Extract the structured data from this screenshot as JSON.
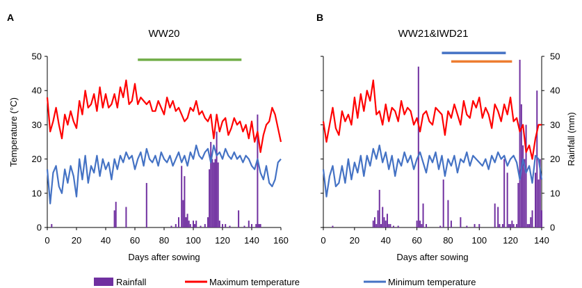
{
  "legend": {
    "rainfall": "Rainfall",
    "max_temp": "Maximum temperature",
    "min_temp": "Minimum temperature"
  },
  "colors": {
    "rainfall": "#7030a0",
    "max_temp": "#ff0000",
    "min_temp": "#4472c4",
    "green_bar": "#70ad47",
    "blue_bar": "#4472c4",
    "orange_bar": "#ed7d31"
  },
  "chart_data": [
    {
      "panel_label": "A",
      "type": "line",
      "title": "WW20",
      "xlabel": "Days after sowing",
      "ylabel": "Temperature (°C)",
      "xlim": [
        0,
        160
      ],
      "ylim": [
        0,
        50
      ],
      "xticks": [
        "0",
        "20",
        "40",
        "60",
        "80",
        "100",
        "120",
        "140",
        "160"
      ],
      "yticks": [
        "0",
        "10",
        "20",
        "30",
        "40",
        "50"
      ],
      "period_bars": [
        {
          "color": "green",
          "from": 62,
          "to": 133,
          "value": 49
        }
      ],
      "series": [
        {
          "name": "Maximum temperature",
          "x": [
            0,
            2,
            4,
            6,
            8,
            10,
            12,
            14,
            16,
            18,
            20,
            22,
            24,
            26,
            28,
            30,
            32,
            34,
            36,
            38,
            40,
            42,
            44,
            46,
            48,
            50,
            52,
            54,
            56,
            58,
            60,
            62,
            64,
            66,
            68,
            70,
            72,
            74,
            76,
            78,
            80,
            82,
            84,
            86,
            88,
            90,
            92,
            94,
            96,
            98,
            100,
            102,
            104,
            106,
            108,
            110,
            112,
            114,
            116,
            118,
            120,
            122,
            124,
            126,
            128,
            130,
            132,
            134,
            136,
            138,
            140,
            142,
            144,
            146,
            148,
            150,
            152,
            154,
            156,
            158,
            160
          ],
          "y": [
            38,
            28,
            31,
            35,
            30,
            26,
            33,
            30,
            34,
            31,
            29,
            37,
            33,
            40,
            35,
            36,
            39,
            34,
            41,
            35,
            39,
            35,
            36,
            39,
            35,
            41,
            38,
            43,
            36,
            37,
            42,
            36,
            38,
            37,
            36,
            37,
            34,
            34,
            37,
            35,
            33,
            38,
            35,
            37,
            34,
            35,
            33,
            31,
            32,
            35,
            34,
            37,
            33,
            34,
            32,
            31,
            33,
            26,
            33,
            28,
            31,
            32,
            27,
            29,
            32,
            30,
            31,
            28,
            30,
            26,
            31,
            25,
            28,
            22,
            27,
            30,
            31,
            35,
            33,
            29,
            25
          ]
        },
        {
          "name": "Minimum temperature",
          "x": [
            0,
            2,
            4,
            6,
            8,
            10,
            12,
            14,
            16,
            18,
            20,
            22,
            24,
            26,
            28,
            30,
            32,
            34,
            36,
            38,
            40,
            42,
            44,
            46,
            48,
            50,
            52,
            54,
            56,
            58,
            60,
            62,
            64,
            66,
            68,
            70,
            72,
            74,
            76,
            78,
            80,
            82,
            84,
            86,
            88,
            90,
            92,
            94,
            96,
            98,
            100,
            102,
            104,
            106,
            108,
            110,
            112,
            114,
            116,
            118,
            120,
            122,
            124,
            126,
            128,
            130,
            132,
            134,
            136,
            138,
            140,
            142,
            144,
            146,
            148,
            150,
            152,
            154,
            156,
            158,
            160
          ],
          "y": [
            17,
            7,
            16,
            18,
            12,
            10,
            17,
            13,
            18,
            15,
            9,
            20,
            14,
            21,
            13,
            18,
            16,
            21,
            15,
            20,
            17,
            19,
            14,
            20,
            17,
            21,
            19,
            22,
            20,
            21,
            17,
            20,
            22,
            18,
            23,
            20,
            19,
            21,
            18,
            22,
            20,
            19,
            21,
            18,
            20,
            22,
            19,
            21,
            18,
            22,
            20,
            24,
            21,
            20,
            22,
            23,
            19,
            24,
            21,
            22,
            20,
            23,
            21,
            20,
            22,
            20,
            21,
            19,
            21,
            20,
            18,
            17,
            20,
            16,
            14,
            18,
            13,
            12,
            14,
            19,
            20
          ]
        },
        {
          "name": "Rainfall",
          "axis": "right",
          "type": "bar",
          "x": [
            3,
            46,
            47,
            54,
            68,
            85,
            88,
            90,
            92,
            93,
            94,
            95,
            96,
            97,
            98,
            100,
            101,
            102,
            105,
            108,
            110,
            111,
            112,
            113,
            114,
            115,
            116,
            117,
            118,
            120,
            122,
            125,
            131,
            135,
            138,
            140,
            143,
            144,
            145,
            146
          ],
          "y": [
            1,
            5,
            7.5,
            6,
            13,
            0.5,
            1,
            3,
            18,
            8,
            15,
            3,
            4,
            2,
            1,
            2,
            1,
            2,
            0.5,
            1,
            3,
            17,
            25,
            20,
            19,
            20,
            28,
            19,
            2,
            1,
            1,
            0.5,
            5,
            0.5,
            2,
            1,
            1,
            33,
            1,
            1
          ]
        }
      ]
    },
    {
      "panel_label": "B",
      "type": "line",
      "title": "WW21&IWD21",
      "xlabel": "Days after sowing",
      "ylabel": "Rainfall (mm)",
      "xlim": [
        0,
        140
      ],
      "ylim": [
        0,
        50
      ],
      "xticks": [
        "0",
        "20",
        "40",
        "60",
        "80",
        "100",
        "120",
        "140"
      ],
      "yticks": [
        "0",
        "10",
        "20",
        "30",
        "40",
        "50"
      ],
      "period_bars": [
        {
          "color": "blue",
          "from": 76,
          "to": 117,
          "value": 51
        },
        {
          "color": "orange",
          "from": 82,
          "to": 121,
          "value": 48.5
        }
      ],
      "series": [
        {
          "name": "Maximum temperature",
          "x": [
            0,
            2,
            4,
            6,
            8,
            10,
            12,
            14,
            16,
            18,
            20,
            22,
            24,
            26,
            28,
            30,
            32,
            34,
            36,
            38,
            40,
            42,
            44,
            46,
            48,
            50,
            52,
            54,
            56,
            58,
            60,
            62,
            64,
            66,
            68,
            70,
            72,
            74,
            76,
            78,
            80,
            82,
            84,
            86,
            88,
            90,
            92,
            94,
            96,
            98,
            100,
            102,
            104,
            106,
            108,
            110,
            112,
            114,
            116,
            118,
            120,
            122,
            124,
            126,
            128,
            130,
            132,
            134,
            136,
            138,
            140
          ],
          "y": [
            31,
            25,
            30,
            35,
            29,
            27,
            34,
            31,
            33,
            30,
            38,
            32,
            39,
            34,
            40,
            37,
            43,
            33,
            34,
            30,
            36,
            31,
            35,
            34,
            31,
            37,
            33,
            35,
            34,
            30,
            32,
            28,
            33,
            34,
            31,
            30,
            35,
            34,
            33,
            27,
            34,
            32,
            36,
            33,
            30,
            37,
            33,
            32,
            37,
            35,
            38,
            32,
            35,
            33,
            29,
            36,
            34,
            31,
            36,
            33,
            38,
            31,
            32,
            28,
            30,
            22,
            24,
            20,
            26,
            30,
            30
          ]
        },
        {
          "name": "Minimum temperature",
          "x": [
            0,
            2,
            4,
            6,
            8,
            10,
            12,
            14,
            16,
            18,
            20,
            22,
            24,
            26,
            28,
            30,
            32,
            34,
            36,
            38,
            40,
            42,
            44,
            46,
            48,
            50,
            52,
            54,
            56,
            58,
            60,
            62,
            64,
            66,
            68,
            70,
            72,
            74,
            76,
            78,
            80,
            82,
            84,
            86,
            88,
            90,
            92,
            94,
            96,
            98,
            100,
            102,
            104,
            106,
            108,
            110,
            112,
            114,
            116,
            118,
            120,
            122,
            124,
            126,
            128,
            130,
            132,
            134,
            136,
            138,
            140
          ],
          "y": [
            17,
            9,
            15,
            18,
            12,
            13,
            18,
            13,
            20,
            14,
            19,
            16,
            21,
            15,
            21,
            18,
            23,
            20,
            24,
            19,
            22,
            17,
            21,
            15,
            20,
            18,
            22,
            19,
            21,
            17,
            20,
            22,
            19,
            16,
            21,
            19,
            22,
            17,
            21,
            15,
            20,
            18,
            21,
            16,
            20,
            19,
            22,
            18,
            21,
            20,
            19,
            18,
            20,
            17,
            21,
            19,
            22,
            20,
            21,
            18,
            20,
            21,
            19,
            14,
            20,
            16,
            18,
            13,
            21,
            20,
            14
          ]
        },
        {
          "name": "Rainfall",
          "axis": "right",
          "type": "bar",
          "x": [
            6,
            32,
            33,
            34,
            35,
            36,
            37,
            38,
            39,
            40,
            41,
            42,
            43,
            45,
            48,
            60,
            61,
            62,
            63,
            64,
            66,
            75,
            77,
            80,
            82,
            88,
            92,
            97,
            100,
            110,
            112,
            113,
            115,
            116,
            118,
            119,
            120,
            121,
            122,
            124,
            125,
            126,
            127,
            128,
            129,
            130,
            131,
            132,
            133,
            134,
            136,
            137,
            138,
            139,
            140
          ],
          "y": [
            0.5,
            2,
            3,
            1,
            5,
            11,
            1,
            6,
            3,
            2,
            4,
            1,
            1,
            0.5,
            0.5,
            2,
            47,
            2,
            1,
            7,
            1,
            0.5,
            14,
            8,
            2,
            3,
            0.5,
            1,
            1,
            7,
            6,
            1,
            1,
            20,
            16,
            1,
            1,
            2,
            1,
            1,
            13,
            49,
            36,
            24,
            20,
            30,
            1,
            1,
            3,
            5,
            16,
            40,
            14,
            20,
            5
          ]
        }
      ]
    }
  ]
}
